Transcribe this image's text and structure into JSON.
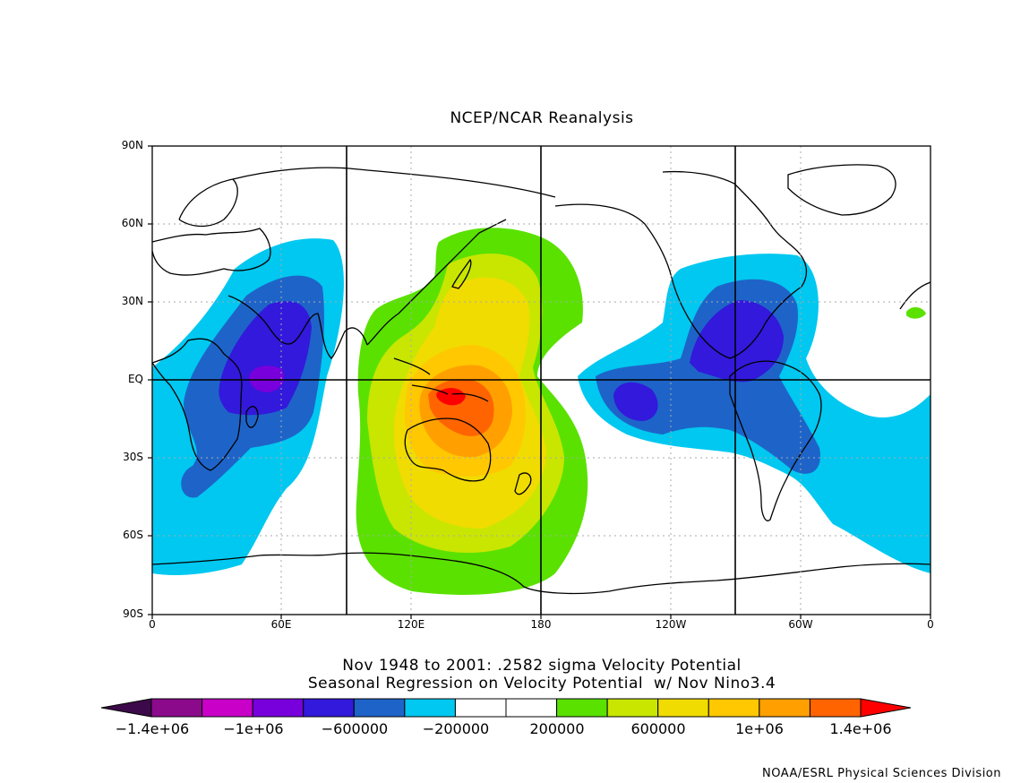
{
  "title": "NCEP/NCAR Reanalysis",
  "lat_ticks": [
    "90N",
    "60N",
    "30N",
    "EQ",
    "30S",
    "60S",
    "90S"
  ],
  "lon_ticks": [
    "0",
    "60E",
    "120E",
    "180",
    "120W",
    "60W",
    "0"
  ],
  "caption_line1": "Nov 1948 to 2001: .2582 sigma Velocity Potential",
  "caption_line2": "Seasonal Regression on Velocity Potential  w/ Nov Nino3.4",
  "colorbar_labels": [
    "−1.4e+06",
    "−1e+06",
    "−600000",
    "−200000",
    "200000",
    "600000",
    "1e+06",
    "1.4e+06"
  ],
  "colorbar_colors": [
    "#3c0a4a",
    "#8b0a8b",
    "#c800c8",
    "#7800dc",
    "#3219dc",
    "#1e64c8",
    "#00c8f0",
    "#ffffff",
    "#ffffff",
    "#5ae100",
    "#c8e600",
    "#f0dc00",
    "#ffc800",
    "#ffa000",
    "#ff6400",
    "#ff0000"
  ],
  "credit": "NOAA/ESRL Physical Sciences Division",
  "colors": {
    "neg_weak": "#00c8f0",
    "neg_mid": "#1e64c8",
    "neg_strong": "#3219dc",
    "neg_max": "#7800dc",
    "pos_weak": "#5ae100",
    "pos_mid": "#c8e600",
    "pos_strong": "#f0dc00",
    "pos_strong2": "#ffc800",
    "pos_max": "#ffa000",
    "pos_max2": "#ff6400",
    "pos_peak": "#ff0000"
  }
}
